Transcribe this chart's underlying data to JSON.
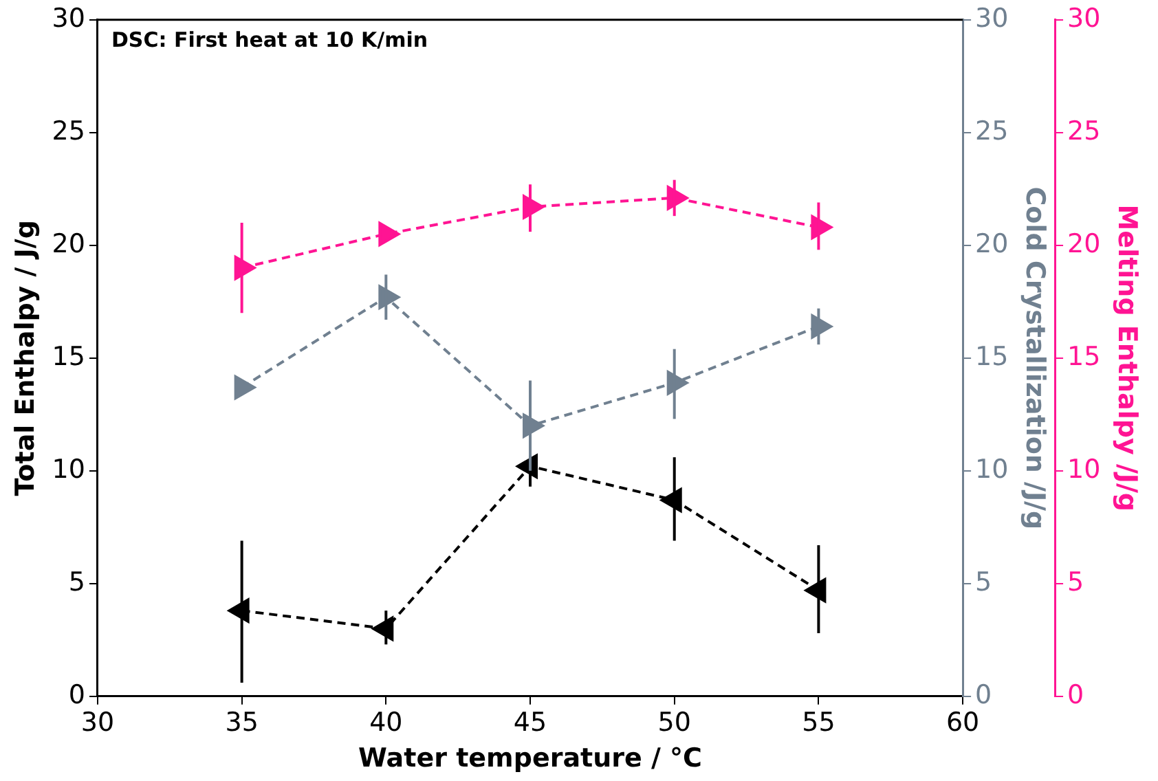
{
  "chart_data": {
    "type": "line",
    "xlabel": "Water temperature / °C",
    "ylabel": "Total Enthalpy / J/g",
    "y2label": "Cold Crystallization /J/g",
    "y3label": "Melting Enthalpy /J/g",
    "annotations": [
      "DSC: First heat at 10 K/min"
    ],
    "x": [
      35,
      40,
      45,
      50,
      55
    ],
    "xlim": [
      30,
      60
    ],
    "xticks": [
      30,
      35,
      40,
      45,
      50,
      55,
      60
    ],
    "ylim": [
      0,
      30
    ],
    "yticks": [
      0,
      5,
      10,
      15,
      20,
      25,
      30
    ],
    "y2lim": [
      0,
      30
    ],
    "y2ticks": [
      0,
      5,
      10,
      15,
      20,
      25,
      30
    ],
    "y3lim": [
      0,
      30
    ],
    "y3ticks": [
      0,
      5,
      10,
      15,
      20,
      25,
      30
    ],
    "grid": false,
    "legend": false,
    "marker": "triangle",
    "line_style": "dashed",
    "series": [
      {
        "color": "#000000",
        "values": [
          3.8,
          3.0,
          10.2,
          8.7,
          4.7
        ],
        "errors": [
          [
            0.6,
            6.9
          ],
          [
            2.3,
            3.8
          ],
          [
            9.3,
            10.7
          ],
          [
            6.9,
            10.6
          ],
          [
            2.8,
            6.7
          ]
        ]
      },
      {
        "color": "#708090",
        "axis": "y2",
        "values": [
          13.7,
          17.7,
          12.0,
          13.9,
          16.4
        ],
        "errors": [
          null,
          [
            16.7,
            18.7
          ],
          [
            10.0,
            14.0
          ],
          [
            12.3,
            15.4
          ],
          [
            15.6,
            17.2
          ]
        ]
      },
      {
        "color": "#ff1493",
        "axis": "y3",
        "values": [
          19.0,
          20.5,
          21.7,
          22.1,
          20.8
        ],
        "errors": [
          [
            17.0,
            21.0
          ],
          null,
          [
            20.6,
            22.7
          ],
          [
            21.3,
            22.9
          ],
          [
            19.8,
            21.9
          ]
        ]
      }
    ]
  }
}
